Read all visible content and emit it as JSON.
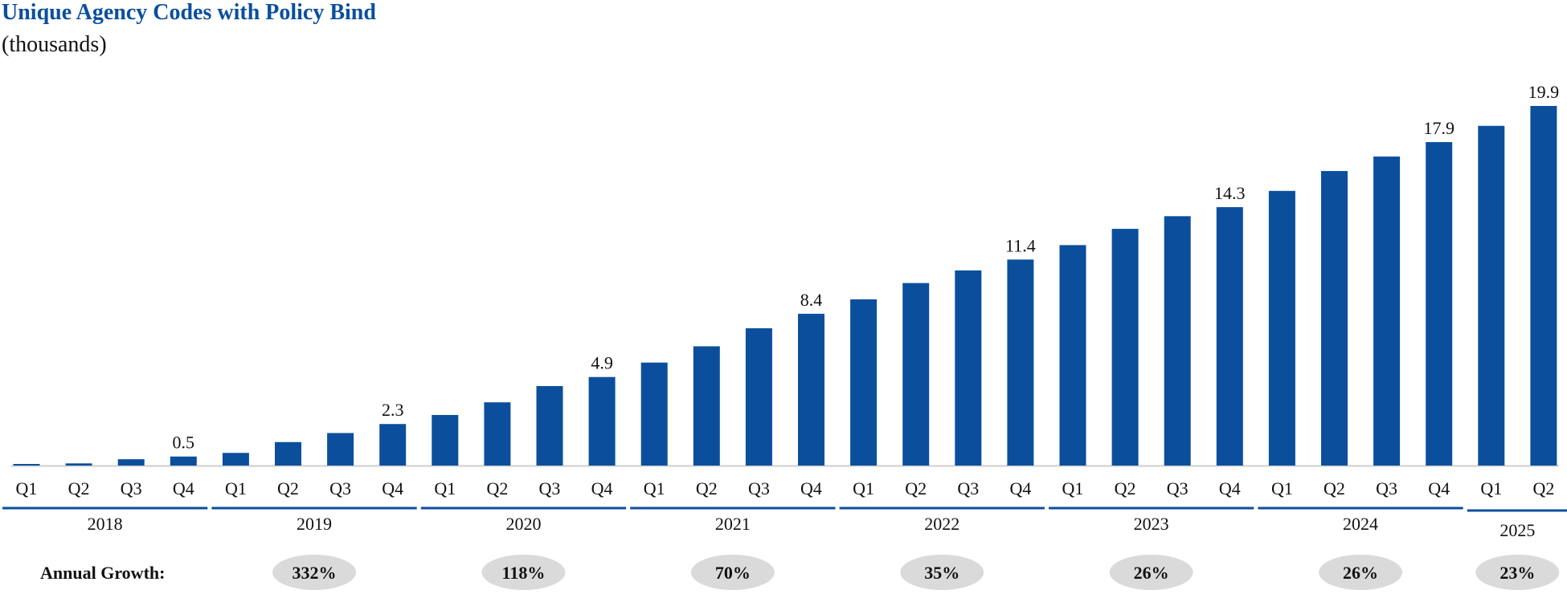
{
  "title": "Unique Agency Codes with Policy Bind",
  "subtitle": "(thousands)",
  "colors": {
    "bar": "#0b4f9c",
    "title": "#0b4f9c",
    "axis": "#cfcfcf",
    "year_rule": "#0b4f9c",
    "growth_pill": "#dadada",
    "text": "#111111"
  },
  "annual_growth_label": "Annual Growth:",
  "annual_growth": [
    {
      "year": "2019",
      "value": "332%"
    },
    {
      "year": "2020",
      "value": "118%"
    },
    {
      "year": "2021",
      "value": "70%"
    },
    {
      "year": "2022",
      "value": "35%"
    },
    {
      "year": "2023",
      "value": "26%"
    },
    {
      "year": "2024",
      "value": "26%"
    },
    {
      "year": "2025",
      "value": "23%"
    }
  ],
  "chart_data": {
    "type": "bar",
    "title": "Unique Agency Codes with Policy Bind",
    "subtitle": "(thousands)",
    "ylim": [
      0,
      21
    ],
    "grid": false,
    "legend": "none",
    "years": [
      {
        "label": "2018",
        "quarters": 4
      },
      {
        "label": "2019",
        "quarters": 4
      },
      {
        "label": "2020",
        "quarters": 4
      },
      {
        "label": "2021",
        "quarters": 4
      },
      {
        "label": "2022",
        "quarters": 4
      },
      {
        "label": "2023",
        "quarters": 4
      },
      {
        "label": "2024",
        "quarters": 4
      },
      {
        "label": "2025",
        "quarters": 2
      }
    ],
    "categories": [
      "Q1",
      "Q2",
      "Q3",
      "Q4",
      "Q1",
      "Q2",
      "Q3",
      "Q4",
      "Q1",
      "Q2",
      "Q3",
      "Q4",
      "Q1",
      "Q2",
      "Q3",
      "Q4",
      "Q1",
      "Q2",
      "Q3",
      "Q4",
      "Q1",
      "Q2",
      "Q3",
      "Q4",
      "Q1",
      "Q2",
      "Q3",
      "Q4",
      "Q1",
      "Q2"
    ],
    "values": [
      0.05,
      0.12,
      0.35,
      0.5,
      0.7,
      1.3,
      1.8,
      2.3,
      2.8,
      3.5,
      4.4,
      4.9,
      5.7,
      6.6,
      7.6,
      8.4,
      9.2,
      10.1,
      10.8,
      11.4,
      12.2,
      13.1,
      13.8,
      14.3,
      15.2,
      16.3,
      17.1,
      17.9,
      18.8,
      19.9
    ],
    "data_labels": [
      null,
      null,
      null,
      "0.5",
      null,
      null,
      null,
      "2.3",
      null,
      null,
      null,
      "4.9",
      null,
      null,
      null,
      "8.4",
      null,
      null,
      null,
      "11.4",
      null,
      null,
      null,
      "14.3",
      null,
      null,
      null,
      "17.9",
      null,
      "19.9"
    ]
  }
}
